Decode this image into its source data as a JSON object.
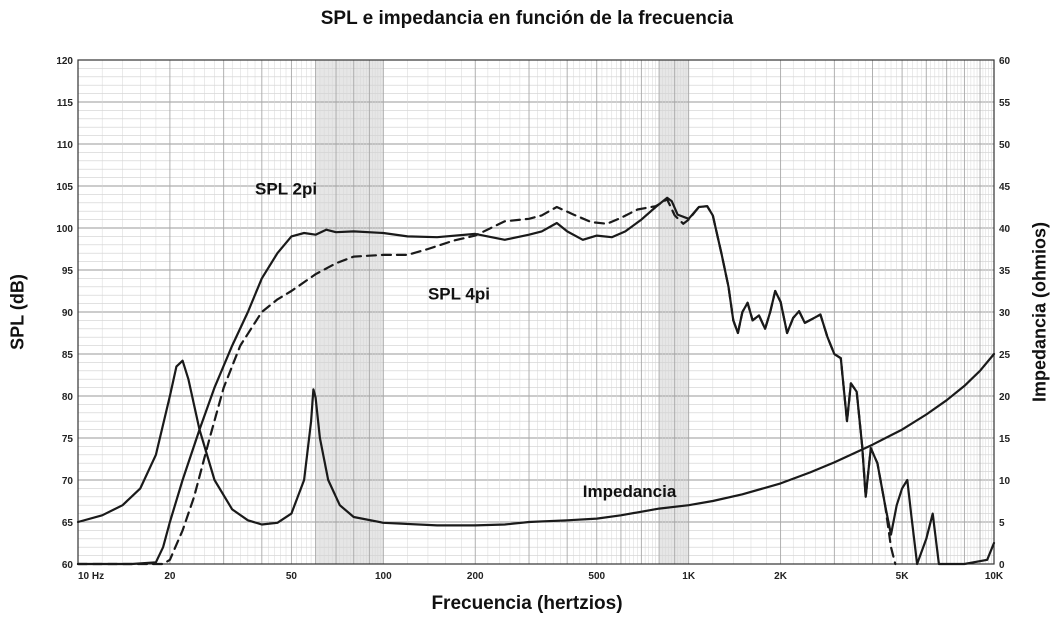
{
  "chart_data": {
    "type": "line",
    "title": "SPL e impedancia en función de la frecuencia",
    "xlabel": "Frecuencia (hertzios)",
    "ylabel": "SPL (dB)",
    "y2label": "Impedancia (ohmios)",
    "xscale": "log",
    "xlim": [
      10,
      10000
    ],
    "ylim": [
      60,
      120
    ],
    "y2lim": [
      0,
      60
    ],
    "grid": true,
    "x_ticks": [
      {
        "value": 10,
        "label": "10  Hz"
      },
      {
        "value": 20,
        "label": "20"
      },
      {
        "value": 50,
        "label": "50"
      },
      {
        "value": 100,
        "label": "100"
      },
      {
        "value": 200,
        "label": "200"
      },
      {
        "value": 500,
        "label": "500"
      },
      {
        "value": 1000,
        "label": "1K"
      },
      {
        "value": 2000,
        "label": "2K"
      },
      {
        "value": 5000,
        "label": "5K"
      },
      {
        "value": 10000,
        "label": "10K"
      }
    ],
    "y_ticks": [
      60,
      65,
      70,
      75,
      80,
      85,
      90,
      95,
      100,
      105,
      110,
      115,
      120
    ],
    "y2_ticks": [
      0,
      5,
      10,
      15,
      20,
      25,
      30,
      35,
      40,
      45,
      50,
      55,
      60
    ],
    "series": [
      {
        "name": "SPL 2pi",
        "axis": "left",
        "style": "solid",
        "points": [
          [
            10,
            60
          ],
          [
            15,
            60
          ],
          [
            18,
            60.2
          ],
          [
            19,
            62
          ],
          [
            20,
            65
          ],
          [
            22,
            70
          ],
          [
            25,
            76
          ],
          [
            28,
            81
          ],
          [
            32,
            86
          ],
          [
            36,
            90
          ],
          [
            40,
            94
          ],
          [
            45,
            97
          ],
          [
            50,
            99
          ],
          [
            55,
            99.4
          ],
          [
            60,
            99.2
          ],
          [
            65,
            99.8
          ],
          [
            70,
            99.5
          ],
          [
            80,
            99.6
          ],
          [
            100,
            99.4
          ],
          [
            120,
            99
          ],
          [
            150,
            98.9
          ],
          [
            200,
            99.3
          ],
          [
            250,
            98.6
          ],
          [
            300,
            99.2
          ],
          [
            330,
            99.6
          ],
          [
            370,
            100.6
          ],
          [
            400,
            99.6
          ],
          [
            450,
            98.6
          ],
          [
            500,
            99.1
          ],
          [
            560,
            98.9
          ],
          [
            620,
            99.6
          ],
          [
            700,
            101
          ],
          [
            780,
            102.5
          ],
          [
            850,
            103.6
          ],
          [
            880,
            103.2
          ],
          [
            920,
            101.6
          ],
          [
            1000,
            101.1
          ],
          [
            1080,
            102.5
          ],
          [
            1150,
            102.6
          ],
          [
            1200,
            101.5
          ],
          [
            1280,
            97
          ],
          [
            1350,
            93
          ],
          [
            1400,
            89
          ],
          [
            1450,
            87.5
          ],
          [
            1500,
            90
          ],
          [
            1560,
            91.1
          ],
          [
            1620,
            89
          ],
          [
            1700,
            89.6
          ],
          [
            1780,
            88
          ],
          [
            1850,
            90
          ],
          [
            1920,
            92.5
          ],
          [
            2000,
            91.2
          ],
          [
            2100,
            87.5
          ],
          [
            2200,
            89.3
          ],
          [
            2300,
            90.1
          ],
          [
            2400,
            88.7
          ],
          [
            2550,
            89.2
          ],
          [
            2700,
            89.7
          ],
          [
            2850,
            87
          ],
          [
            3000,
            85
          ],
          [
            3150,
            84.5
          ],
          [
            3300,
            77
          ],
          [
            3400,
            81.5
          ],
          [
            3550,
            80.5
          ],
          [
            3700,
            74
          ],
          [
            3800,
            68
          ],
          [
            3950,
            73.8
          ],
          [
            4150,
            72
          ],
          [
            4400,
            67
          ],
          [
            4600,
            63.5
          ],
          [
            4800,
            67
          ],
          [
            5000,
            69
          ],
          [
            5200,
            70
          ],
          [
            5350,
            66
          ],
          [
            5600,
            60
          ],
          [
            6000,
            63
          ],
          [
            6300,
            66
          ],
          [
            6600,
            60
          ],
          [
            8000,
            60
          ],
          [
            9500,
            60.5
          ],
          [
            10000,
            62.5
          ]
        ]
      },
      {
        "name": "SPL 4pi",
        "axis": "left",
        "style": "dashed",
        "points": [
          [
            10,
            60
          ],
          [
            19,
            60
          ],
          [
            20,
            60.5
          ],
          [
            22,
            64
          ],
          [
            24,
            68
          ],
          [
            27,
            75
          ],
          [
            30,
            81
          ],
          [
            34,
            86
          ],
          [
            40,
            90
          ],
          [
            45,
            91.5
          ],
          [
            50,
            92.5
          ],
          [
            60,
            94.5
          ],
          [
            70,
            95.8
          ],
          [
            80,
            96.6
          ],
          [
            100,
            96.8
          ],
          [
            120,
            96.8
          ],
          [
            140,
            97.5
          ],
          [
            170,
            98.5
          ],
          [
            200,
            99.1
          ],
          [
            250,
            100.8
          ],
          [
            300,
            101.1
          ],
          [
            330,
            101.5
          ],
          [
            370,
            102.5
          ],
          [
            420,
            101.6
          ],
          [
            480,
            100.7
          ],
          [
            540,
            100.5
          ],
          [
            600,
            101.2
          ],
          [
            680,
            102.2
          ],
          [
            780,
            102.6
          ],
          [
            850,
            103.4
          ],
          [
            900,
            101.5
          ],
          [
            960,
            100.5
          ],
          [
            1000,
            101
          ],
          [
            1080,
            102.5
          ],
          [
            1150,
            102.6
          ],
          [
            1200,
            101.5
          ],
          [
            1280,
            97
          ],
          [
            1350,
            93
          ],
          [
            1400,
            89
          ],
          [
            1450,
            87.5
          ],
          [
            1500,
            90
          ],
          [
            1560,
            91.1
          ],
          [
            1620,
            89
          ],
          [
            1700,
            89.6
          ],
          [
            1780,
            88
          ],
          [
            1850,
            90
          ],
          [
            1920,
            92.5
          ],
          [
            2000,
            91.2
          ],
          [
            2100,
            87.5
          ],
          [
            2200,
            89.3
          ],
          [
            2300,
            90.1
          ],
          [
            2400,
            88.7
          ],
          [
            2550,
            89.2
          ],
          [
            2700,
            89.7
          ],
          [
            2850,
            87
          ],
          [
            3000,
            85
          ],
          [
            3150,
            84.5
          ],
          [
            3300,
            77
          ],
          [
            3400,
            81.5
          ],
          [
            3550,
            80.5
          ],
          [
            3700,
            74
          ],
          [
            3800,
            68
          ],
          [
            3950,
            73.8
          ],
          [
            4150,
            72
          ],
          [
            4400,
            67
          ],
          [
            4600,
            62
          ],
          [
            4750,
            60
          ]
        ]
      },
      {
        "name": "Impedancia",
        "axis": "right",
        "style": "solid",
        "points": [
          [
            10,
            5
          ],
          [
            12,
            5.8
          ],
          [
            14,
            7
          ],
          [
            16,
            9
          ],
          [
            18,
            13
          ],
          [
            20,
            20
          ],
          [
            21,
            23.5
          ],
          [
            22,
            24.2
          ],
          [
            23,
            22
          ],
          [
            25,
            16
          ],
          [
            28,
            10
          ],
          [
            32,
            6.5
          ],
          [
            36,
            5.2
          ],
          [
            40,
            4.7
          ],
          [
            45,
            4.9
          ],
          [
            50,
            6
          ],
          [
            55,
            10
          ],
          [
            58,
            17
          ],
          [
            59,
            20.8
          ],
          [
            60,
            19.8
          ],
          [
            62,
            15
          ],
          [
            66,
            10
          ],
          [
            72,
            7
          ],
          [
            80,
            5.6
          ],
          [
            100,
            4.9
          ],
          [
            150,
            4.6
          ],
          [
            200,
            4.6
          ],
          [
            250,
            4.7
          ],
          [
            300,
            5
          ],
          [
            400,
            5.2
          ],
          [
            500,
            5.4
          ],
          [
            600,
            5.8
          ],
          [
            800,
            6.6
          ],
          [
            1000,
            7
          ],
          [
            1200,
            7.5
          ],
          [
            1500,
            8.3
          ],
          [
            2000,
            9.6
          ],
          [
            2500,
            10.9
          ],
          [
            3000,
            12.1
          ],
          [
            4000,
            14.2
          ],
          [
            5000,
            16
          ],
          [
            6000,
            17.8
          ],
          [
            7000,
            19.5
          ],
          [
            8000,
            21.2
          ],
          [
            9000,
            23
          ],
          [
            10000,
            25
          ]
        ]
      }
    ],
    "annotations": [
      {
        "text": "SPL 2pi",
        "x": 38,
        "y": 104
      },
      {
        "text": "SPL 4pi",
        "x": 140,
        "y": 91.5
      },
      {
        "text": "Impedancia",
        "x": 450,
        "y": 68
      }
    ]
  }
}
